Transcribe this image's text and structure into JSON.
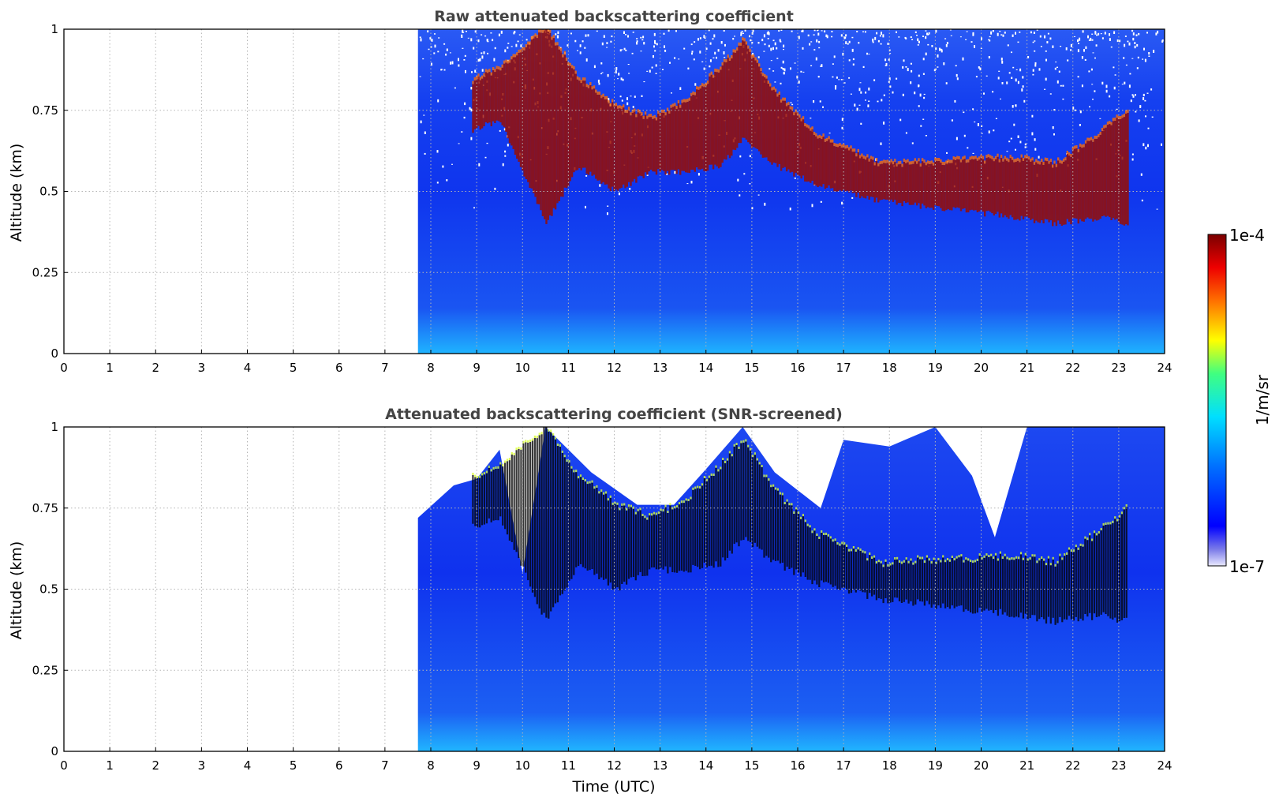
{
  "chart_data": [
    {
      "type": "heatmap",
      "title": "Raw attenuated backscattering coefficient",
      "xlabel": "",
      "ylabel": "Altitude (km)",
      "xlim": [
        0,
        24
      ],
      "ylim": [
        0,
        1
      ],
      "xticks": [
        "0",
        "1",
        "2",
        "3",
        "4",
        "5",
        "6",
        "7",
        "8",
        "9",
        "10",
        "11",
        "12",
        "13",
        "14",
        "15",
        "16",
        "17",
        "18",
        "19",
        "20",
        "21",
        "22",
        "23",
        "24"
      ],
      "yticks": [
        "0",
        "0.25",
        "0.5",
        "0.75",
        "1"
      ],
      "grid": true,
      "data_start_hour": 7.72,
      "cloud_layer": [
        {
          "x": 8.9,
          "y_bottom": 0.69,
          "y_top": 0.84
        },
        {
          "x": 9.5,
          "y_bottom": 0.72,
          "y_top": 0.88
        },
        {
          "x": 10.5,
          "y_bottom": 0.4,
          "y_top": 1.0
        },
        {
          "x": 11.2,
          "y_bottom": 0.58,
          "y_top": 0.85
        },
        {
          "x": 12.0,
          "y_bottom": 0.5,
          "y_top": 0.76
        },
        {
          "x": 12.8,
          "y_bottom": 0.56,
          "y_top": 0.72
        },
        {
          "x": 13.6,
          "y_bottom": 0.56,
          "y_top": 0.78
        },
        {
          "x": 14.3,
          "y_bottom": 0.58,
          "y_top": 0.88
        },
        {
          "x": 14.8,
          "y_bottom": 0.66,
          "y_top": 0.96
        },
        {
          "x": 15.5,
          "y_bottom": 0.58,
          "y_top": 0.8
        },
        {
          "x": 16.4,
          "y_bottom": 0.52,
          "y_top": 0.67
        },
        {
          "x": 17.8,
          "y_bottom": 0.47,
          "y_top": 0.58
        },
        {
          "x": 20.8,
          "y_bottom": 0.42,
          "y_top": 0.6
        },
        {
          "x": 21.6,
          "y_bottom": 0.4,
          "y_top": 0.58
        },
        {
          "x": 22.6,
          "y_bottom": 0.42,
          "y_top": 0.68
        },
        {
          "x": 23.2,
          "y_bottom": 0.4,
          "y_top": 0.75
        }
      ]
    },
    {
      "type": "heatmap",
      "title": "Attenuated backscattering coefficient (SNR-screened)",
      "xlabel": "Time (UTC)",
      "ylabel": "Altitude (km)",
      "xlim": [
        0,
        24
      ],
      "ylim": [
        0,
        1
      ],
      "xticks": [
        "0",
        "1",
        "2",
        "3",
        "4",
        "5",
        "6",
        "7",
        "8",
        "9",
        "10",
        "11",
        "12",
        "13",
        "14",
        "15",
        "16",
        "17",
        "18",
        "19",
        "20",
        "21",
        "22",
        "23",
        "24"
      ],
      "yticks": [
        "0",
        "0.25",
        "0.5",
        "0.75",
        "1"
      ],
      "grid": true,
      "data_start_hour": 7.72,
      "screened_top": [
        {
          "x": 7.72,
          "y": 0.72
        },
        {
          "x": 8.5,
          "y": 0.82
        },
        {
          "x": 9.0,
          "y": 0.84
        },
        {
          "x": 9.5,
          "y": 0.93
        },
        {
          "x": 10.0,
          "y": 0.55
        },
        {
          "x": 10.5,
          "y": 1.0
        },
        {
          "x": 11.0,
          "y": 0.93
        },
        {
          "x": 11.5,
          "y": 0.86
        },
        {
          "x": 12.5,
          "y": 0.76
        },
        {
          "x": 13.3,
          "y": 0.76
        },
        {
          "x": 14.0,
          "y": 0.87
        },
        {
          "x": 14.8,
          "y": 1.0
        },
        {
          "x": 15.5,
          "y": 0.86
        },
        {
          "x": 16.5,
          "y": 0.75
        },
        {
          "x": 17.0,
          "y": 0.96
        },
        {
          "x": 18.0,
          "y": 0.94
        },
        {
          "x": 19.0,
          "y": 1.0
        },
        {
          "x": 19.8,
          "y": 0.85
        },
        {
          "x": 20.3,
          "y": 0.66
        },
        {
          "x": 21.0,
          "y": 1.0
        },
        {
          "x": 24.0,
          "y": 1.0
        }
      ]
    }
  ],
  "colorbar": {
    "label": "1/m/sr",
    "max_label": "1e-4",
    "min_label": "1e-7",
    "colormap": "jet"
  }
}
